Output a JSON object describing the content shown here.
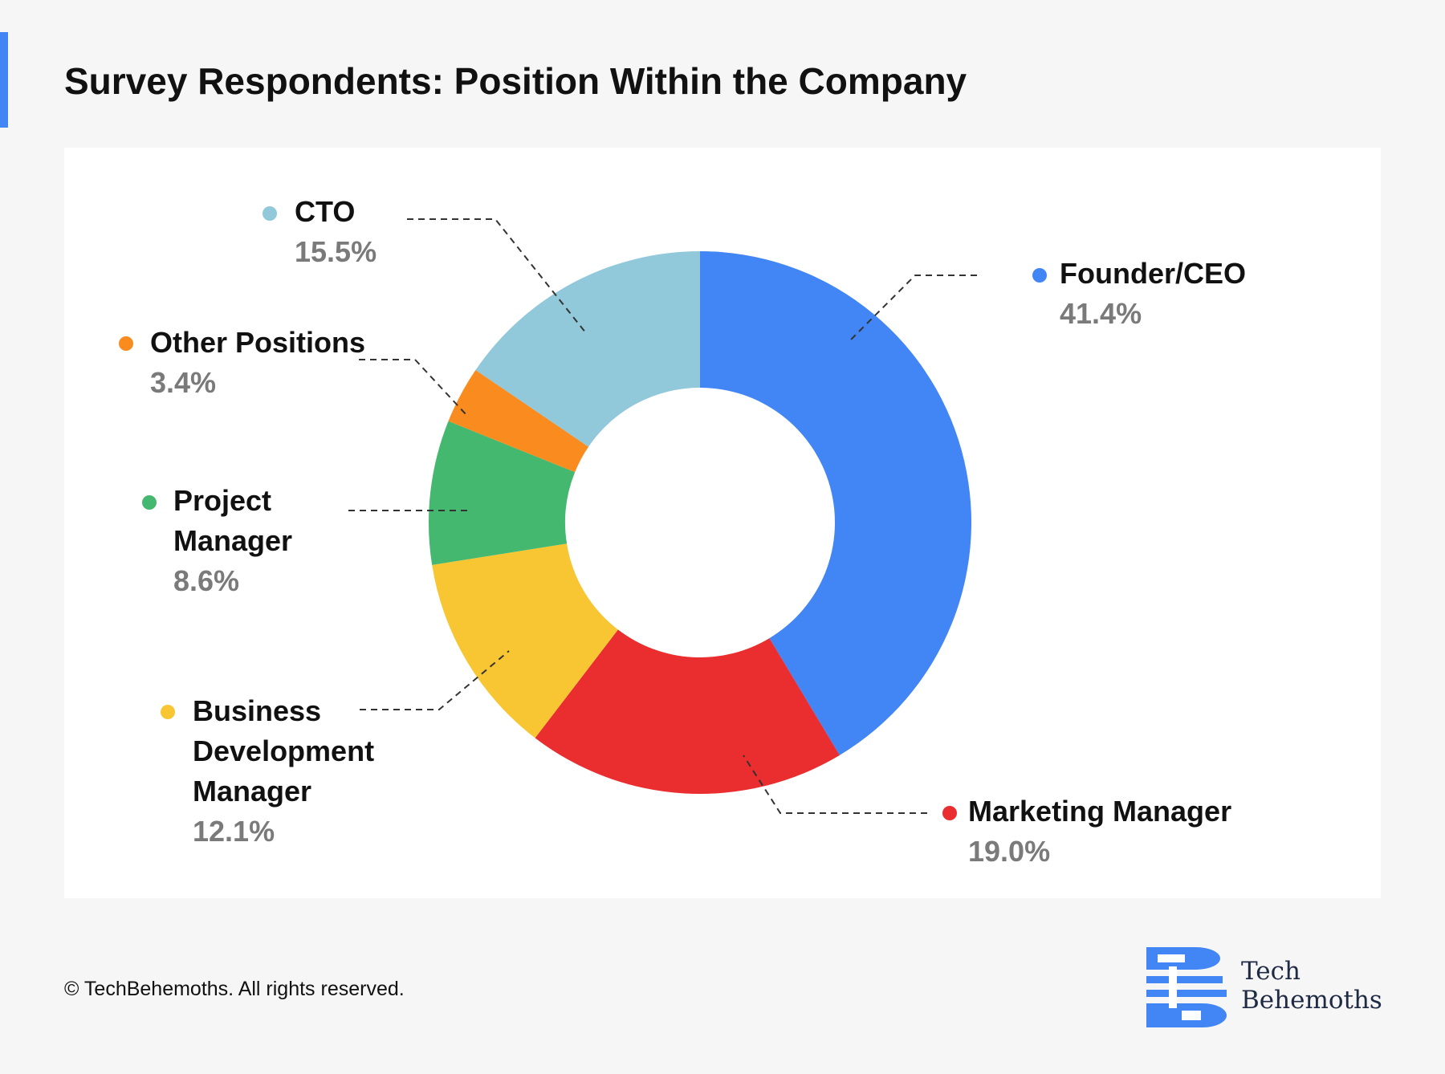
{
  "title": "Survey Respondents: Position Within the Company",
  "footer": {
    "copyright": "© TechBehemoths. All rights reserved.",
    "logo_line1": "Tech",
    "logo_line2": "Behemoths"
  },
  "colors": {
    "accent": "#4285f4",
    "logo": "#4285f4"
  },
  "chart_data": {
    "type": "pie",
    "style": "donut",
    "categories": [
      "Founder/CEO",
      "Marketing Manager",
      "Business Development Manager",
      "Project Manager",
      "Other Positions",
      "CTO"
    ],
    "values": [
      41.4,
      19.0,
      12.1,
      8.6,
      3.4,
      15.5
    ],
    "value_labels": [
      "41.4%",
      "19.0%",
      "12.1%",
      "8.6%",
      "3.4%",
      "15.5%"
    ],
    "label_lines": [
      [
        "Founder/CEO"
      ],
      [
        "Marketing Manager"
      ],
      [
        "Business",
        "Development",
        "Manager"
      ],
      [
        "Project",
        "Manager"
      ],
      [
        "Other Positions"
      ],
      [
        "CTO"
      ]
    ],
    "colors": [
      "#4285f4",
      "#ea2d2e",
      "#f8c633",
      "#45b86f",
      "#f98b1f",
      "#91c8da"
    ],
    "legend": "labels beside slices with leader lines"
  }
}
